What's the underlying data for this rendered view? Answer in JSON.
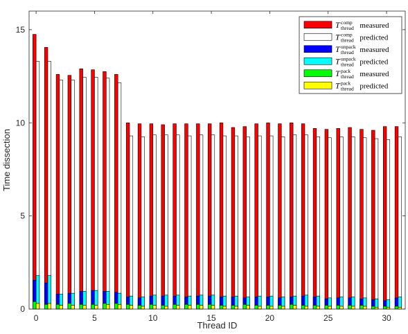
{
  "chart_data": {
    "type": "bar",
    "xlabel": "Thread ID",
    "ylabel": "Time dissection",
    "xlim": [
      -0.6,
      31.6
    ],
    "ylim": [
      0,
      16
    ],
    "xticks": [
      "0",
      "5",
      "10",
      "15",
      "20",
      "25",
      "30"
    ],
    "yticks": [
      "0",
      "5",
      "10",
      "15"
    ],
    "grid": false,
    "legend_position": "top-right",
    "categories": [
      0,
      1,
      2,
      3,
      4,
      5,
      6,
      7,
      8,
      9,
      10,
      11,
      12,
      13,
      14,
      15,
      16,
      17,
      18,
      19,
      20,
      21,
      22,
      23,
      24,
      25,
      26,
      27,
      28,
      29,
      30,
      31
    ],
    "series": [
      {
        "name": "T_thread^comp measured",
        "legend_base": "T",
        "legend_sup": "comp",
        "legend_sub": "thread",
        "legend_suffix": "measured",
        "color": "#ff0000",
        "values": [
          14.75,
          14.05,
          12.6,
          12.55,
          12.9,
          12.85,
          12.75,
          12.6,
          10.0,
          9.95,
          9.95,
          9.9,
          9.95,
          9.95,
          9.95,
          9.95,
          10.0,
          9.75,
          9.8,
          9.95,
          10.0,
          9.95,
          10.0,
          9.95,
          9.7,
          9.65,
          9.7,
          9.75,
          9.65,
          9.6,
          9.8,
          9.8
        ]
      },
      {
        "name": "T_thread^comp predicted",
        "legend_base": "T",
        "legend_sup": "comp",
        "legend_sub": "thread",
        "legend_suffix": "predicted",
        "color": "#ffffff",
        "values": [
          13.3,
          13.3,
          12.3,
          12.3,
          12.45,
          12.45,
          12.4,
          12.15,
          9.3,
          9.25,
          9.35,
          9.35,
          9.35,
          9.3,
          9.35,
          9.35,
          9.3,
          9.3,
          9.25,
          9.3,
          9.3,
          9.25,
          9.35,
          9.35,
          9.25,
          9.2,
          9.25,
          9.25,
          9.2,
          9.15,
          9.1,
          9.25
        ]
      },
      {
        "name": "T_thread^unpack measured",
        "legend_base": "T",
        "legend_sup": "unpack",
        "legend_sub": "thread",
        "legend_suffix": "measured",
        "color": "#0000ff",
        "values": [
          1.55,
          1.4,
          0.8,
          0.85,
          0.95,
          1.0,
          0.95,
          0.9,
          0.65,
          0.6,
          0.7,
          0.7,
          0.7,
          0.65,
          0.7,
          0.7,
          0.65,
          0.65,
          0.6,
          0.65,
          0.65,
          0.6,
          0.65,
          0.7,
          0.65,
          0.55,
          0.6,
          0.6,
          0.55,
          0.5,
          0.45,
          0.6
        ]
      },
      {
        "name": "T_thread^unpack predicted",
        "legend_base": "T",
        "legend_sup": "unpack",
        "legend_sub": "thread",
        "legend_suffix": "predicted",
        "color": "#00ffff",
        "values": [
          1.8,
          1.8,
          0.8,
          0.85,
          0.95,
          1.0,
          0.95,
          0.85,
          0.7,
          0.65,
          0.75,
          0.75,
          0.75,
          0.7,
          0.75,
          0.75,
          0.7,
          0.7,
          0.65,
          0.7,
          0.7,
          0.65,
          0.7,
          0.75,
          0.7,
          0.6,
          0.65,
          0.65,
          0.6,
          0.55,
          0.5,
          0.65
        ]
      },
      {
        "name": "T_thread^pack measured",
        "legend_base": "T",
        "legend_sup": "pack",
        "legend_sub": "thread",
        "legend_suffix": "measured",
        "color": "#00ff00",
        "values": [
          0.4,
          0.25,
          0.25,
          0.3,
          0.25,
          0.25,
          0.3,
          0.3,
          0.25,
          0.2,
          0.25,
          0.2,
          0.25,
          0.25,
          0.25,
          0.25,
          0.2,
          0.2,
          0.25,
          0.2,
          0.2,
          0.2,
          0.25,
          0.2,
          0.2,
          0.2,
          0.2,
          0.2,
          0.2,
          0.15,
          0.15,
          0.15
        ]
      },
      {
        "name": "T_thread^pack predicted",
        "legend_base": "T",
        "legend_sup": "pack",
        "legend_sub": "thread",
        "legend_suffix": "predicted",
        "color": "#ffff00",
        "values": [
          0.3,
          0.3,
          0.2,
          0.2,
          0.2,
          0.2,
          0.25,
          0.25,
          0.2,
          0.15,
          0.2,
          0.15,
          0.2,
          0.2,
          0.2,
          0.2,
          0.15,
          0.15,
          0.2,
          0.15,
          0.15,
          0.15,
          0.2,
          0.15,
          0.15,
          0.15,
          0.15,
          0.15,
          0.15,
          0.1,
          0.1,
          0.1
        ]
      }
    ]
  }
}
